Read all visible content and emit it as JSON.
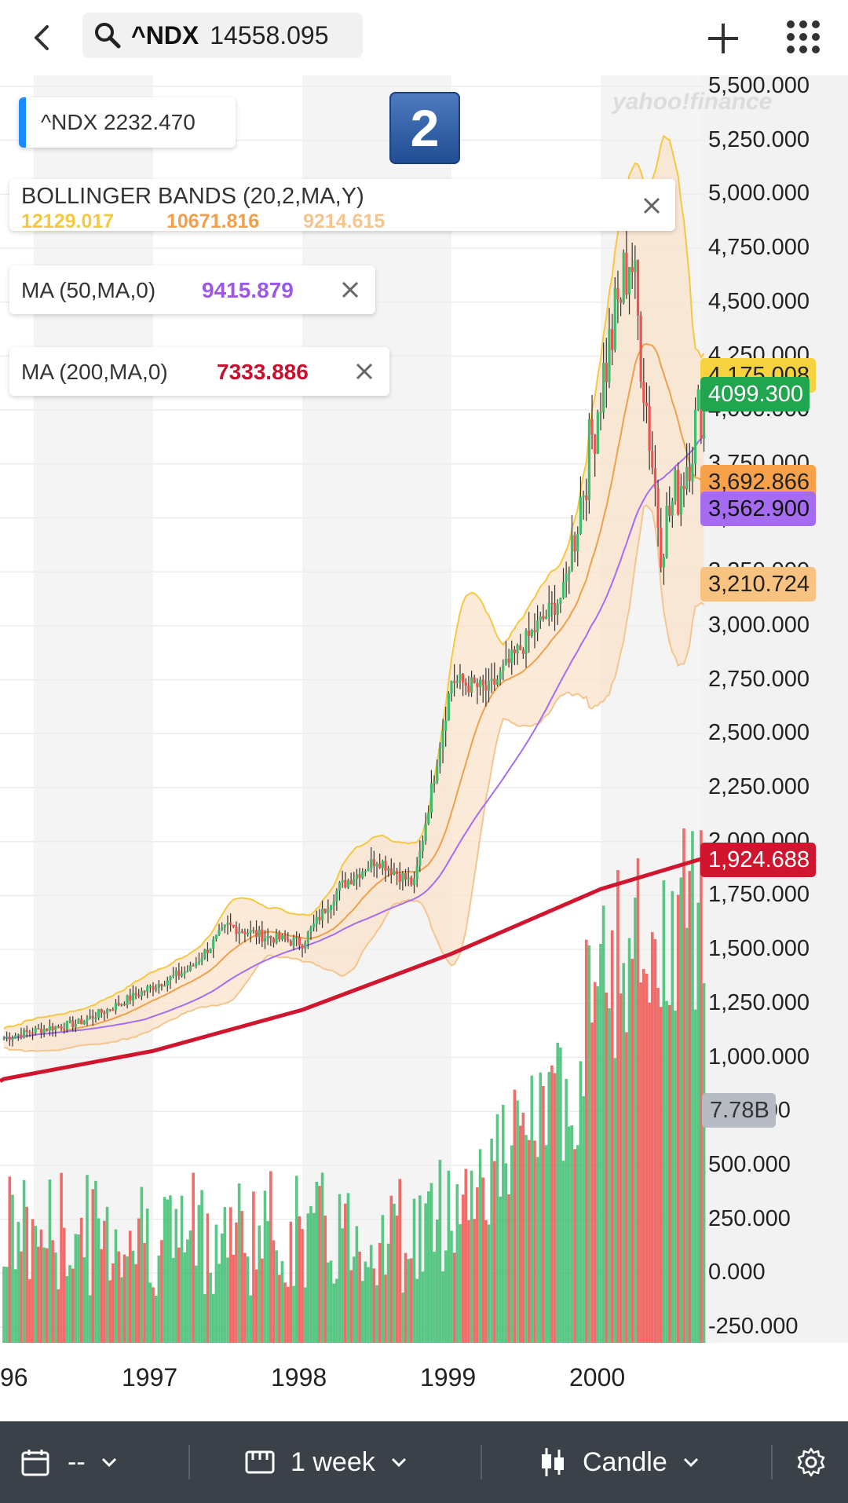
{
  "topbar": {
    "symbol": "^NDX",
    "price": "14558.095"
  },
  "overlays": {
    "symbol_tag": "^NDX  2232.470",
    "bollinger": {
      "name": "BOLLINGER BANDS (20,2,MA,Y)",
      "upper": "12129.017",
      "middle": "10671.816",
      "lower": "9214.615"
    },
    "ma50": {
      "name": "MA (50,MA,0)",
      "value": "9415.879"
    },
    "ma200": {
      "name": "MA (200,MA,0)",
      "value": "7333.886"
    },
    "badge": "2",
    "watermark": "yahoo!finance"
  },
  "price_labels": {
    "bb_upper": "4,175.008",
    "last": "4099.300",
    "bb_middle": "3,692.866",
    "ma50": "3,562.900",
    "bb_lower": "3,210.724",
    "ma200": "1,924.688",
    "volume": "7.78B"
  },
  "colors": {
    "bb_upper": "#f5c842",
    "bb_middle": "#f0a04b",
    "bb_lower": "#f4c58f",
    "ma50": "#a66cf0",
    "ma200": "#d0162f",
    "up": "#3dbd6e",
    "down": "#ef5350",
    "last": "#1fa84f"
  },
  "chart_data": {
    "type": "candlestick",
    "symbol": "^NDX",
    "interval": "1 week",
    "y_ticks": [
      "5,500.000",
      "5,250.000",
      "5,000.000",
      "4,750.000",
      "4,500.000",
      "4,250.000",
      "4,000.000",
      "3,750.000",
      "3,500.000",
      "3,250.000",
      "3,000.000",
      "2,750.000",
      "2,500.000",
      "2,250.000",
      "2,000.000",
      "1,750.000",
      "1,500.000",
      "1,250.000",
      "1,000.000",
      "750.000",
      "500.000",
      "250.000",
      "0.000",
      "-250.000"
    ],
    "x_ticks": [
      "96",
      "1997",
      "1998",
      "1999",
      "2000"
    ],
    "ylim": [
      -250,
      5500
    ],
    "close_path": [
      {
        "x": 1996.0,
        "y": 1090
      },
      {
        "x": 1996.25,
        "y": 1130
      },
      {
        "x": 1996.5,
        "y": 1160
      },
      {
        "x": 1996.75,
        "y": 1240
      },
      {
        "x": 1997.0,
        "y": 1330
      },
      {
        "x": 1997.25,
        "y": 1410
      },
      {
        "x": 1997.5,
        "y": 1610
      },
      {
        "x": 1997.75,
        "y": 1560
      },
      {
        "x": 1998.0,
        "y": 1530
      },
      {
        "x": 1998.25,
        "y": 1790
      },
      {
        "x": 1998.5,
        "y": 1920
      },
      {
        "x": 1998.75,
        "y": 1800
      },
      {
        "x": 1999.0,
        "y": 2750
      },
      {
        "x": 1999.25,
        "y": 2700
      },
      {
        "x": 1999.5,
        "y": 2930
      },
      {
        "x": 1999.75,
        "y": 3150
      },
      {
        "x": 2000.0,
        "y": 4100
      },
      {
        "x": 2000.2,
        "y": 4750
      },
      {
        "x": 2000.4,
        "y": 3400
      },
      {
        "x": 2000.55,
        "y": 3700
      },
      {
        "x": 2000.7,
        "y": 4099
      }
    ],
    "ma200_path": [
      {
        "x": 1996.0,
        "y": 900
      },
      {
        "x": 1997.0,
        "y": 1030
      },
      {
        "x": 1998.0,
        "y": 1220
      },
      {
        "x": 1999.0,
        "y": 1480
      },
      {
        "x": 2000.0,
        "y": 1780
      },
      {
        "x": 2000.7,
        "y": 1924.688
      }
    ],
    "volume_axis_label": "7.78B"
  },
  "bottombar": {
    "range_label": "--",
    "interval_label": "1 week",
    "charttype_label": "Candle"
  }
}
